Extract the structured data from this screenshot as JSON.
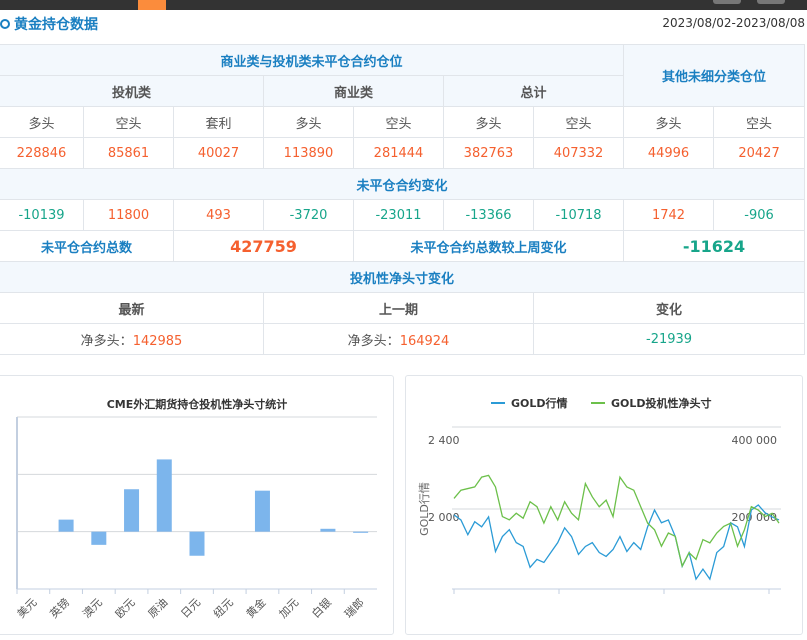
{
  "title": "黄金持仓数据",
  "date_range": "2023/08/02-2023/08/08",
  "table": {
    "group_header": "商业类与投机类未平仓合约仓位",
    "other_header": "其他未细分类仓位",
    "speculative": "投机类",
    "commercial": "商业类",
    "total": "总计",
    "cols": [
      "多头",
      "空头",
      "套利",
      "多头",
      "空头",
      "多头",
      "空头",
      "多头",
      "空头"
    ],
    "positions": [
      "228846",
      "85861",
      "40027",
      "113890",
      "281444",
      "382763",
      "407332",
      "44996",
      "20427"
    ],
    "change_header": "未平仓合约变化",
    "changes": [
      "-10139",
      "11800",
      "493",
      "-3720",
      "-23011",
      "-13366",
      "-10718",
      "1742",
      "-906"
    ],
    "total_label": "未平仓合约总数",
    "total_value": "427759",
    "total_change_label": "未平仓合约总数较上周变化",
    "total_change_value": "-11624",
    "net_header": "投机性净头寸变化",
    "net_cols": [
      "最新",
      "上一期",
      "变化"
    ],
    "net_label": "净多头：",
    "net_latest": "142985",
    "net_prev": "164924",
    "net_change": "-21939"
  },
  "colors": {
    "up": "#f5602f",
    "down": "#17a58a",
    "accent": "#1a7fc1",
    "bar": "#7cb5ec",
    "gold_line": "#2b9bd6",
    "net_line": "#6cc04a"
  },
  "chart_data": [
    {
      "type": "bar",
      "title": "CME外汇期货持仓投机性净头寸统计",
      "categories": [
        "美元",
        "英镑",
        "澳元",
        "欧元",
        "原油",
        "日元",
        "纽元",
        "黄金",
        "加元",
        "白银",
        "瑞郎"
      ],
      "values": [
        0,
        42000,
        -46000,
        148000,
        252000,
        -84000,
        0,
        142985,
        0,
        10000,
        -4000
      ],
      "ylim": [
        -200000,
        400000
      ],
      "grid": true
    },
    {
      "type": "line",
      "legend": [
        "GOLD行情",
        "GOLD投机性净头寸"
      ],
      "legend_position": "top",
      "ylabel": "GOLD行情",
      "yticks_left": [
        "2 400",
        "2 000"
      ],
      "yticks_right": [
        "400 000",
        "200 000"
      ],
      "ylim_left": [
        1600,
        2400
      ],
      "ylim_right": [
        0,
        400000
      ],
      "series": [
        {
          "name": "GOLD行情",
          "values": [
            1966,
            1941,
            1868,
            1932,
            1907,
            1956,
            1785,
            1859,
            1893,
            1829,
            1810,
            1707,
            1746,
            1731,
            1780,
            1829,
            1902,
            1859,
            1771,
            1810,
            1829,
            1780,
            1761,
            1795,
            1859,
            1785,
            1829,
            1795,
            1907,
            1990,
            1927,
            1941,
            1859,
            1712,
            1780,
            1649,
            1698,
            1649,
            1780,
            1810,
            1927,
            1907,
            1810,
            1990,
            2015,
            1976,
            1956,
            1941
          ]
        },
        {
          "name": "GOLD投机性净头寸",
          "values": [
            223600,
            243900,
            248000,
            252000,
            276300,
            280500,
            252000,
            178800,
            170700,
            187000,
            174800,
            215400,
            203200,
            162700,
            203200,
            170700,
            215400,
            187000,
            170700,
            260200,
            227600,
            203200,
            219500,
            178800,
            276300,
            252000,
            243900,
            203200,
            162700,
            146300,
            105600,
            138200,
            130000,
            56800,
            89500,
            73200,
            122000,
            113900,
            138200,
            154500,
            162700,
            105600,
            146300,
            203200,
            195100,
            178800,
            187000,
            162700
          ]
        }
      ]
    }
  ]
}
